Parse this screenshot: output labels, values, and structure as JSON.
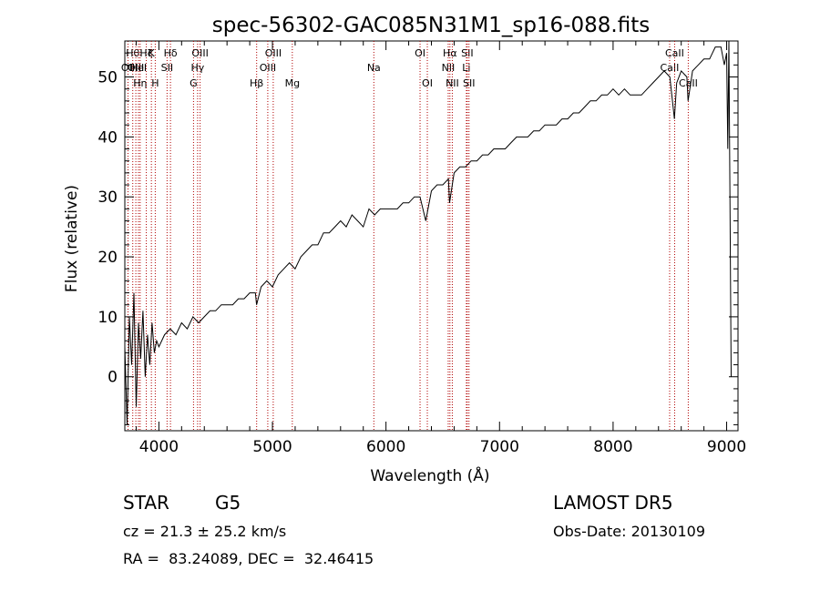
{
  "chart_data": {
    "type": "line",
    "title": "spec-56302-GAC085N31M1_sp16-088.fits",
    "xlabel": "Wavelength (Å)",
    "ylabel": "Flux (relative)",
    "xlim": [
      3700,
      9100
    ],
    "ylim": [
      -9,
      56
    ],
    "x_ticks": [
      4000,
      5000,
      6000,
      7000,
      8000,
      9000
    ],
    "y_ticks": [
      0,
      10,
      20,
      30,
      40,
      50
    ],
    "series": [
      {
        "x": [
          3700,
          3720,
          3740,
          3760,
          3780,
          3800,
          3820,
          3840,
          3860,
          3880,
          3900,
          3920,
          3940,
          3960,
          3980,
          4000,
          4050,
          4100,
          4150,
          4200,
          4250,
          4300,
          4350,
          4400,
          4450,
          4500,
          4550,
          4600,
          4650,
          4700,
          4750,
          4800,
          4850,
          4860,
          4900,
          4950,
          5000,
          5050,
          5100,
          5150,
          5200,
          5250,
          5300,
          5350,
          5400,
          5450,
          5500,
          5550,
          5600,
          5650,
          5700,
          5750,
          5800,
          5850,
          5900,
          5950,
          6000,
          6050,
          6100,
          6150,
          6200,
          6250,
          6300,
          6350,
          6400,
          6450,
          6500,
          6550,
          6560,
          6600,
          6650,
          6700,
          6750,
          6800,
          6850,
          6900,
          6950,
          7000,
          7050,
          7100,
          7150,
          7200,
          7250,
          7300,
          7350,
          7400,
          7450,
          7500,
          7550,
          7600,
          7650,
          7700,
          7750,
          7800,
          7850,
          7900,
          7950,
          8000,
          8050,
          8100,
          8150,
          8200,
          8250,
          8300,
          8350,
          8400,
          8450,
          8500,
          8540,
          8560,
          8600,
          8650,
          8660,
          8700,
          8750,
          8800,
          8850,
          8900,
          8950,
          8980,
          9000,
          9010,
          9020,
          9040
        ],
        "y": [
          5,
          -8,
          10,
          2,
          14,
          -5,
          9,
          3,
          11,
          0,
          7,
          2,
          9,
          4,
          6,
          5,
          7,
          8,
          7,
          9,
          8,
          10,
          9,
          10,
          11,
          11,
          12,
          12,
          12,
          13,
          13,
          14,
          14,
          12,
          15,
          16,
          15,
          17,
          18,
          19,
          18,
          20,
          21,
          22,
          22,
          24,
          24,
          25,
          26,
          25,
          27,
          26,
          25,
          28,
          27,
          28,
          28,
          28,
          28,
          29,
          29,
          30,
          30,
          26,
          31,
          32,
          32,
          33,
          29,
          34,
          35,
          35,
          36,
          36,
          37,
          37,
          38,
          38,
          38,
          39,
          40,
          40,
          40,
          41,
          41,
          42,
          42,
          42,
          43,
          43,
          44,
          44,
          45,
          46,
          46,
          47,
          47,
          48,
          47,
          48,
          47,
          47,
          47,
          48,
          49,
          50,
          51,
          50,
          43,
          49,
          51,
          50,
          46,
          51,
          52,
          53,
          53,
          55,
          55,
          52,
          54,
          38,
          56,
          0
        ]
      }
    ],
    "lines": [
      {
        "x": 3728,
        "label": "OII",
        "row": 2
      },
      {
        "x": 3770,
        "label": "Hθ",
        "row": 1
      },
      {
        "x": 3797,
        "label": "OIII",
        "row": 2
      },
      {
        "x": 3820,
        "label": "HeI",
        "row": 2
      },
      {
        "x": 3835,
        "label": "Hη",
        "row": 3
      },
      {
        "x": 3889,
        "label": "Hζ",
        "row": 1
      },
      {
        "x": 3934,
        "label": "K",
        "row": 1
      },
      {
        "x": 3968,
        "label": "H",
        "row": 3
      },
      {
        "x": 4072,
        "label": "SII",
        "row": 2
      },
      {
        "x": 4102,
        "label": "Hδ",
        "row": 1
      },
      {
        "x": 4305,
        "label": "G",
        "row": 3
      },
      {
        "x": 4341,
        "label": "Hγ",
        "row": 2
      },
      {
        "x": 4363,
        "label": "OIII",
        "row": 1
      },
      {
        "x": 4861,
        "label": "Hβ",
        "row": 3
      },
      {
        "x": 4959,
        "label": "OIII",
        "row": 2
      },
      {
        "x": 5007,
        "label": "OIII",
        "row": 1
      },
      {
        "x": 5175,
        "label": "Mg",
        "row": 3
      },
      {
        "x": 5893,
        "label": "Na",
        "row": 2
      },
      {
        "x": 6300,
        "label": "OI",
        "row": 1
      },
      {
        "x": 6364,
        "label": "OI",
        "row": 3
      },
      {
        "x": 6548,
        "label": "NII",
        "row": 2
      },
      {
        "x": 6563,
        "label": "Hα",
        "row": 1
      },
      {
        "x": 6584,
        "label": "NII",
        "row": 3
      },
      {
        "x": 6708,
        "label": "Li",
        "row": 2
      },
      {
        "x": 6716,
        "label": "SII",
        "row": 1
      },
      {
        "x": 6731,
        "label": "SII",
        "row": 3
      },
      {
        "x": 8498,
        "label": "CaII",
        "row": 2
      },
      {
        "x": 8542,
        "label": "CaII",
        "row": 1
      },
      {
        "x": 8662,
        "label": "CaII",
        "row": 3
      }
    ],
    "line_color": "#b00000",
    "grid": false,
    "legend": "none"
  },
  "info": {
    "class": "STAR",
    "subclass": "G5",
    "velocity": "cz = 21.3 ± 25.2 km/s",
    "coords": "RA =  83.24089, DEC =  32.46415",
    "survey": "LAMOST DR5",
    "obsdate": "Obs-Date: 20130109"
  }
}
